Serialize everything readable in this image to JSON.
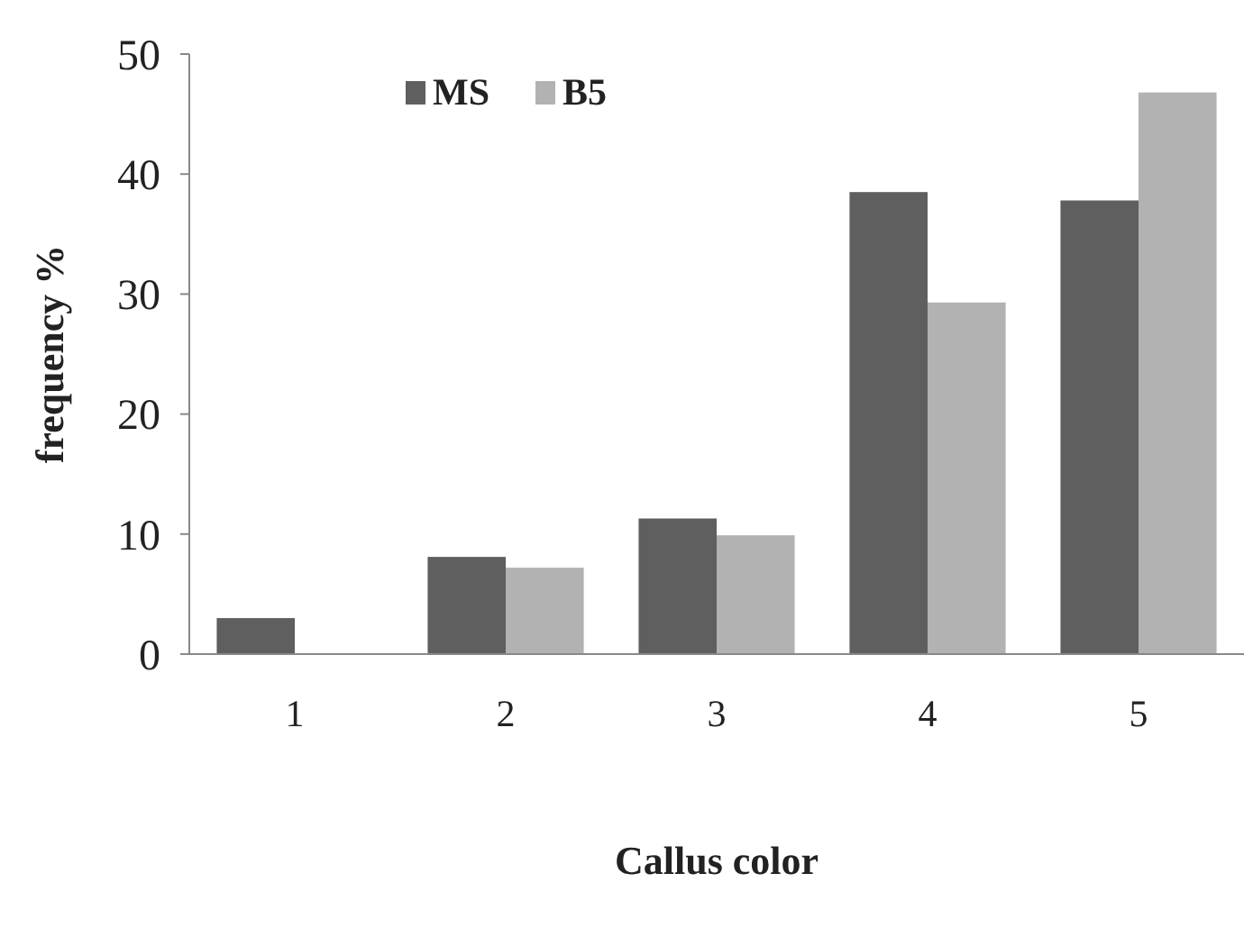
{
  "chart_data": {
    "type": "bar",
    "xlabel": "Callus color",
    "ylabel": "frequency %",
    "categories": [
      "1",
      "2",
      "3",
      "4",
      "5"
    ],
    "series": [
      {
        "name": "MS",
        "color": "#5f5f5f",
        "values": [
          3.0,
          8.1,
          11.3,
          38.5,
          37.8
        ]
      },
      {
        "name": "B5",
        "color": "#b2b2b2",
        "values": [
          0,
          7.2,
          9.9,
          29.3,
          46.8
        ]
      }
    ],
    "ylim": [
      0,
      50
    ],
    "yticks": [
      0,
      10,
      20,
      30,
      40,
      50
    ],
    "grid": false,
    "legend": "top left"
  }
}
